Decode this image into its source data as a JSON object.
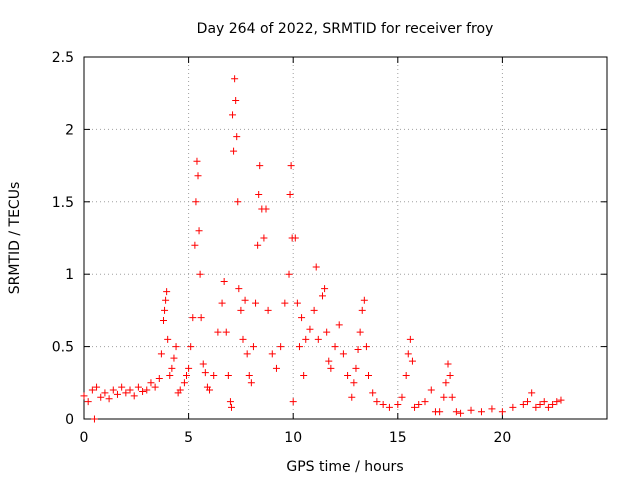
{
  "chart_data": {
    "type": "scatter",
    "title": "Day 264 of 2022, SRMTID for receiver froy",
    "xlabel": "GPS time / hours",
    "ylabel": "SRMTID / TECUs",
    "xlim": [
      0,
      25
    ],
    "ylim": [
      0,
      2.5
    ],
    "xticks": [
      0,
      5,
      10,
      15,
      20
    ],
    "xtick_labels": [
      "0",
      "5",
      "10",
      "15",
      "20"
    ],
    "yticks": [
      0,
      0.5,
      1,
      1.5,
      2,
      2.5
    ],
    "ytick_labels": [
      "0",
      "0.5",
      "1",
      "1.5",
      "2",
      "2.5"
    ],
    "grid": true,
    "marker": "+",
    "color": "#ff0000",
    "series": [
      {
        "name": "SRMTID",
        "points": [
          [
            0.0,
            0.16
          ],
          [
            0.2,
            0.12
          ],
          [
            0.4,
            0.2
          ],
          [
            0.5,
            0.0
          ],
          [
            0.6,
            0.22
          ],
          [
            0.8,
            0.15
          ],
          [
            1.0,
            0.18
          ],
          [
            1.2,
            0.14
          ],
          [
            1.4,
            0.2
          ],
          [
            1.6,
            0.17
          ],
          [
            1.8,
            0.22
          ],
          [
            2.0,
            0.18
          ],
          [
            2.2,
            0.2
          ],
          [
            2.4,
            0.16
          ],
          [
            2.6,
            0.22
          ],
          [
            2.8,
            0.19
          ],
          [
            3.0,
            0.2
          ],
          [
            3.2,
            0.25
          ],
          [
            3.4,
            0.22
          ],
          [
            3.6,
            0.28
          ],
          [
            3.7,
            0.45
          ],
          [
            3.8,
            0.68
          ],
          [
            3.85,
            0.75
          ],
          [
            3.9,
            0.82
          ],
          [
            3.95,
            0.88
          ],
          [
            4.0,
            0.55
          ],
          [
            4.1,
            0.3
          ],
          [
            4.2,
            0.35
          ],
          [
            4.3,
            0.42
          ],
          [
            4.4,
            0.5
          ],
          [
            4.5,
            0.18
          ],
          [
            4.6,
            0.2
          ],
          [
            4.8,
            0.25
          ],
          [
            4.9,
            0.3
          ],
          [
            5.0,
            0.35
          ],
          [
            5.1,
            0.5
          ],
          [
            5.2,
            0.7
          ],
          [
            5.3,
            1.2
          ],
          [
            5.35,
            1.5
          ],
          [
            5.4,
            1.78
          ],
          [
            5.45,
            1.68
          ],
          [
            5.5,
            1.3
          ],
          [
            5.55,
            1.0
          ],
          [
            5.6,
            0.7
          ],
          [
            5.7,
            0.38
          ],
          [
            5.8,
            0.32
          ],
          [
            5.9,
            0.22
          ],
          [
            6.0,
            0.2
          ],
          [
            6.2,
            0.3
          ],
          [
            6.4,
            0.6
          ],
          [
            6.6,
            0.8
          ],
          [
            6.7,
            0.95
          ],
          [
            6.8,
            0.6
          ],
          [
            6.9,
            0.3
          ],
          [
            7.0,
            0.12
          ],
          [
            7.05,
            0.08
          ],
          [
            7.1,
            2.1
          ],
          [
            7.15,
            1.85
          ],
          [
            7.2,
            2.35
          ],
          [
            7.25,
            2.2
          ],
          [
            7.3,
            1.95
          ],
          [
            7.35,
            1.5
          ],
          [
            7.4,
            0.9
          ],
          [
            7.5,
            0.75
          ],
          [
            7.6,
            0.55
          ],
          [
            7.7,
            0.82
          ],
          [
            7.8,
            0.45
          ],
          [
            7.9,
            0.3
          ],
          [
            8.0,
            0.25
          ],
          [
            8.1,
            0.5
          ],
          [
            8.2,
            0.8
          ],
          [
            8.3,
            1.2
          ],
          [
            8.35,
            1.55
          ],
          [
            8.4,
            1.75
          ],
          [
            8.5,
            1.45
          ],
          [
            8.6,
            1.25
          ],
          [
            8.7,
            1.45
          ],
          [
            8.8,
            0.75
          ],
          [
            9.0,
            0.45
          ],
          [
            9.2,
            0.35
          ],
          [
            9.4,
            0.5
          ],
          [
            9.6,
            0.8
          ],
          [
            9.8,
            1.0
          ],
          [
            9.85,
            1.55
          ],
          [
            9.9,
            1.75
          ],
          [
            9.95,
            1.25
          ],
          [
            10.0,
            0.12
          ],
          [
            10.1,
            1.25
          ],
          [
            10.2,
            0.8
          ],
          [
            10.3,
            0.5
          ],
          [
            10.4,
            0.7
          ],
          [
            10.5,
            0.3
          ],
          [
            10.6,
            0.55
          ],
          [
            10.8,
            0.62
          ],
          [
            11.0,
            0.75
          ],
          [
            11.1,
            1.05
          ],
          [
            11.2,
            0.55
          ],
          [
            11.4,
            0.85
          ],
          [
            11.5,
            0.9
          ],
          [
            11.6,
            0.6
          ],
          [
            11.7,
            0.4
          ],
          [
            11.8,
            0.35
          ],
          [
            12.0,
            0.5
          ],
          [
            12.2,
            0.65
          ],
          [
            12.4,
            0.45
          ],
          [
            12.6,
            0.3
          ],
          [
            12.8,
            0.15
          ],
          [
            12.9,
            0.25
          ],
          [
            13.0,
            0.35
          ],
          [
            13.1,
            0.48
          ],
          [
            13.2,
            0.6
          ],
          [
            13.3,
            0.75
          ],
          [
            13.4,
            0.82
          ],
          [
            13.5,
            0.5
          ],
          [
            13.6,
            0.3
          ],
          [
            13.8,
            0.18
          ],
          [
            14.0,
            0.12
          ],
          [
            14.3,
            0.1
          ],
          [
            14.6,
            0.08
          ],
          [
            15.0,
            0.1
          ],
          [
            15.2,
            0.15
          ],
          [
            15.4,
            0.3
          ],
          [
            15.5,
            0.45
          ],
          [
            15.6,
            0.55
          ],
          [
            15.7,
            0.4
          ],
          [
            15.8,
            0.08
          ],
          [
            16.0,
            0.1
          ],
          [
            16.3,
            0.12
          ],
          [
            16.6,
            0.2
          ],
          [
            16.8,
            0.05
          ],
          [
            17.0,
            0.05
          ],
          [
            17.2,
            0.15
          ],
          [
            17.3,
            0.25
          ],
          [
            17.4,
            0.38
          ],
          [
            17.5,
            0.3
          ],
          [
            17.6,
            0.15
          ],
          [
            17.8,
            0.05
          ],
          [
            18.0,
            0.04
          ],
          [
            18.5,
            0.06
          ],
          [
            19.0,
            0.05
          ],
          [
            19.5,
            0.07
          ],
          [
            20.0,
            0.05
          ],
          [
            20.5,
            0.08
          ],
          [
            21.0,
            0.1
          ],
          [
            21.2,
            0.12
          ],
          [
            21.4,
            0.18
          ],
          [
            21.6,
            0.08
          ],
          [
            21.8,
            0.1
          ],
          [
            22.0,
            0.12
          ],
          [
            22.2,
            0.08
          ],
          [
            22.4,
            0.1
          ],
          [
            22.6,
            0.12
          ],
          [
            22.8,
            0.13
          ]
        ]
      }
    ]
  }
}
